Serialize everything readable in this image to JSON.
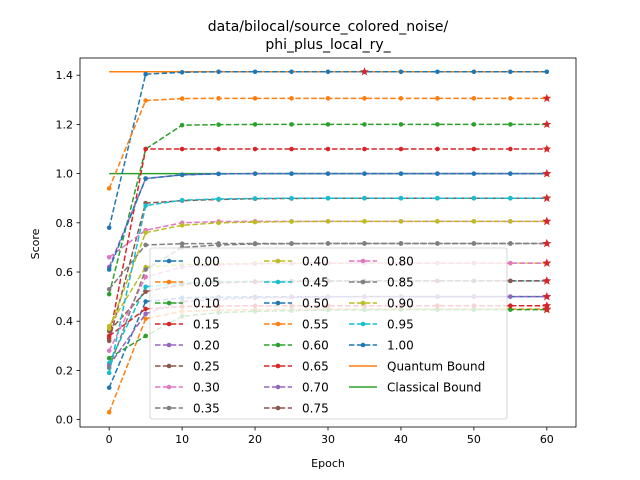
{
  "chart_data": {
    "type": "line",
    "title": [
      "data/bilocal/source_colored_noise/",
      "phi_plus_local_ry_"
    ],
    "xlabel": "Epoch",
    "ylabel": "Score",
    "xlim": [
      -4,
      64
    ],
    "ylim": [
      -0.03,
      1.47
    ],
    "xticks": [
      0,
      10,
      20,
      30,
      40,
      50,
      60
    ],
    "yticks": [
      0.0,
      0.2,
      0.4,
      0.6,
      0.8,
      1.0,
      1.2,
      1.4
    ],
    "ytick_labels": [
      "0.0",
      "0.2",
      "0.4",
      "0.6",
      "0.8",
      "1.0",
      "1.2",
      "1.4"
    ],
    "grid": false,
    "legend_location": "lower center",
    "x": [
      0,
      5,
      10,
      15,
      20,
      25,
      30,
      35,
      40,
      45,
      50,
      55,
      60
    ],
    "series": [
      {
        "name": "0.00",
        "color": "#1f77b4",
        "values": [
          0.78,
          1.404,
          1.412,
          1.414,
          1.414,
          1.414,
          1.414,
          1.414,
          1.414,
          1.414,
          1.414,
          1.414,
          1.414
        ]
      },
      {
        "name": "0.05",
        "color": "#ff7f0e",
        "values": [
          0.94,
          1.297,
          1.305,
          1.306,
          1.306,
          1.306,
          1.306,
          1.306,
          1.306,
          1.306,
          1.306,
          1.306,
          1.306
        ]
      },
      {
        "name": "0.10",
        "color": "#2ca02c",
        "values": [
          0.51,
          1.1,
          1.197,
          1.199,
          1.2,
          1.2,
          1.2,
          1.2,
          1.2,
          1.2,
          1.2,
          1.2,
          1.2
        ]
      },
      {
        "name": "0.15",
        "color": "#d62728",
        "values": [
          0.33,
          1.1,
          1.1,
          1.1,
          1.1,
          1.1,
          1.1,
          1.1,
          1.1,
          1.1,
          1.1,
          1.1,
          1.1
        ]
      },
      {
        "name": "0.20",
        "color": "#9467bd",
        "values": [
          0.62,
          0.98,
          0.995,
          0.999,
          1.0,
          1.0,
          1.0,
          1.0,
          1.0,
          1.0,
          1.0,
          1.0,
          1.0
        ]
      },
      {
        "name": "0.25",
        "color": "#8c564b",
        "values": [
          0.32,
          0.88,
          0.89,
          0.895,
          0.898,
          0.899,
          0.9,
          0.9,
          0.9,
          0.9,
          0.9,
          0.9,
          0.9
        ]
      },
      {
        "name": "0.30",
        "color": "#e377c2",
        "values": [
          0.66,
          0.77,
          0.8,
          0.805,
          0.806,
          0.806,
          0.806,
          0.806,
          0.806,
          0.806,
          0.806,
          0.806,
          0.806
        ]
      },
      {
        "name": "0.35",
        "color": "#7f7f7f",
        "values": [
          0.53,
          0.71,
          0.715,
          0.716,
          0.716,
          0.716,
          0.716,
          0.716,
          0.716,
          0.716,
          0.716,
          0.716,
          0.716
        ]
      },
      {
        "name": "0.40",
        "color": "#bcbd22",
        "values": [
          0.38,
          0.62,
          0.63,
          0.634,
          0.635,
          0.636,
          0.636,
          0.636,
          0.636,
          0.636,
          0.636,
          0.636,
          0.636
        ]
      },
      {
        "name": "0.45",
        "color": "#17becf",
        "values": [
          0.23,
          0.54,
          0.555,
          0.56,
          0.562,
          0.563,
          0.564,
          0.564,
          0.564,
          0.564,
          0.564,
          0.564,
          0.564
        ]
      },
      {
        "name": "0.50",
        "color": "#1f77b4",
        "values": [
          0.13,
          0.48,
          0.495,
          0.498,
          0.499,
          0.5,
          0.5,
          0.5,
          0.5,
          0.5,
          0.5,
          0.5,
          0.5
        ]
      },
      {
        "name": "0.55",
        "color": "#ff7f0e",
        "values": [
          0.03,
          0.41,
          0.44,
          0.445,
          0.447,
          0.448,
          0.449,
          0.449,
          0.449,
          0.449,
          0.449,
          0.449,
          0.449
        ]
      },
      {
        "name": "0.60",
        "color": "#2ca02c",
        "values": [
          0.25,
          0.34,
          0.42,
          0.435,
          0.44,
          0.443,
          0.445,
          0.446,
          0.447,
          0.447,
          0.447,
          0.447,
          0.447
        ]
      },
      {
        "name": "0.65",
        "color": "#d62728",
        "values": [
          0.34,
          0.45,
          0.46,
          0.462,
          0.463,
          0.463,
          0.463,
          0.463,
          0.463,
          0.463,
          0.463,
          0.463,
          0.463
        ]
      },
      {
        "name": "0.70",
        "color": "#9467bd",
        "values": [
          0.22,
          0.43,
          0.48,
          0.49,
          0.495,
          0.497,
          0.499,
          0.5,
          0.5,
          0.5,
          0.5,
          0.5,
          0.5
        ]
      },
      {
        "name": "0.75",
        "color": "#8c564b",
        "values": [
          0.36,
          0.52,
          0.55,
          0.556,
          0.56,
          0.562,
          0.563,
          0.564,
          0.564,
          0.564,
          0.564,
          0.564,
          0.564
        ]
      },
      {
        "name": "0.80",
        "color": "#e377c2",
        "values": [
          0.28,
          0.58,
          0.62,
          0.63,
          0.633,
          0.635,
          0.636,
          0.636,
          0.636,
          0.636,
          0.636,
          0.636,
          0.636
        ]
      },
      {
        "name": "0.85",
        "color": "#7f7f7f",
        "values": [
          0.21,
          0.61,
          0.7,
          0.71,
          0.714,
          0.715,
          0.716,
          0.716,
          0.716,
          0.716,
          0.716,
          0.716,
          0.716
        ]
      },
      {
        "name": "0.90",
        "color": "#bcbd22",
        "values": [
          0.37,
          0.76,
          0.79,
          0.8,
          0.803,
          0.805,
          0.806,
          0.806,
          0.806,
          0.806,
          0.806,
          0.806,
          0.806
        ]
      },
      {
        "name": "0.95",
        "color": "#17becf",
        "values": [
          0.19,
          0.87,
          0.892,
          0.897,
          0.899,
          0.9,
          0.9,
          0.9,
          0.9,
          0.9,
          0.9,
          0.9,
          0.9
        ]
      },
      {
        "name": "1.00",
        "color": "#1f77b4",
        "values": [
          0.61,
          0.98,
          0.995,
          0.999,
          1.0,
          1.0,
          1.0,
          1.0,
          1.0,
          1.0,
          1.0,
          1.0,
          1.0
        ]
      }
    ],
    "bounds": [
      {
        "name": "Quantum Bound",
        "color": "#ff7f0e",
        "value": 1.414
      },
      {
        "name": "Classical Bound",
        "color": "#2ca02c",
        "value": 1.0
      }
    ],
    "star_markers": [
      {
        "series": "0.00",
        "x": 35,
        "y": 1.414
      },
      {
        "series": "0.05",
        "x": 60,
        "y": 1.306
      },
      {
        "series": "0.10",
        "x": 60,
        "y": 1.2
      },
      {
        "series": "0.15",
        "x": 60,
        "y": 1.1
      },
      {
        "series": "0.20",
        "x": 60,
        "y": 1.0
      },
      {
        "series": "0.25",
        "x": 60,
        "y": 0.9
      },
      {
        "series": "0.30",
        "x": 60,
        "y": 0.806
      },
      {
        "series": "0.35",
        "x": 60,
        "y": 0.716
      },
      {
        "series": "0.40",
        "x": 60,
        "y": 0.636
      },
      {
        "series": "0.45",
        "x": 60,
        "y": 0.564
      },
      {
        "series": "0.50",
        "x": 60,
        "y": 0.5
      },
      {
        "series": "0.55",
        "x": 60,
        "y": 0.449
      },
      {
        "series": "0.60",
        "x": 60,
        "y": 0.447
      },
      {
        "series": "0.65",
        "x": 60,
        "y": 0.463
      },
      {
        "series": "0.70",
        "x": 60,
        "y": 0.5
      },
      {
        "series": "0.75",
        "x": 60,
        "y": 0.564
      },
      {
        "series": "0.80",
        "x": 60,
        "y": 0.636
      },
      {
        "series": "0.85",
        "x": 60,
        "y": 0.716
      },
      {
        "series": "0.90",
        "x": 60,
        "y": 0.806
      },
      {
        "series": "0.95",
        "x": 60,
        "y": 0.9
      },
      {
        "series": "1.00",
        "x": 60,
        "y": 1.0
      }
    ]
  }
}
